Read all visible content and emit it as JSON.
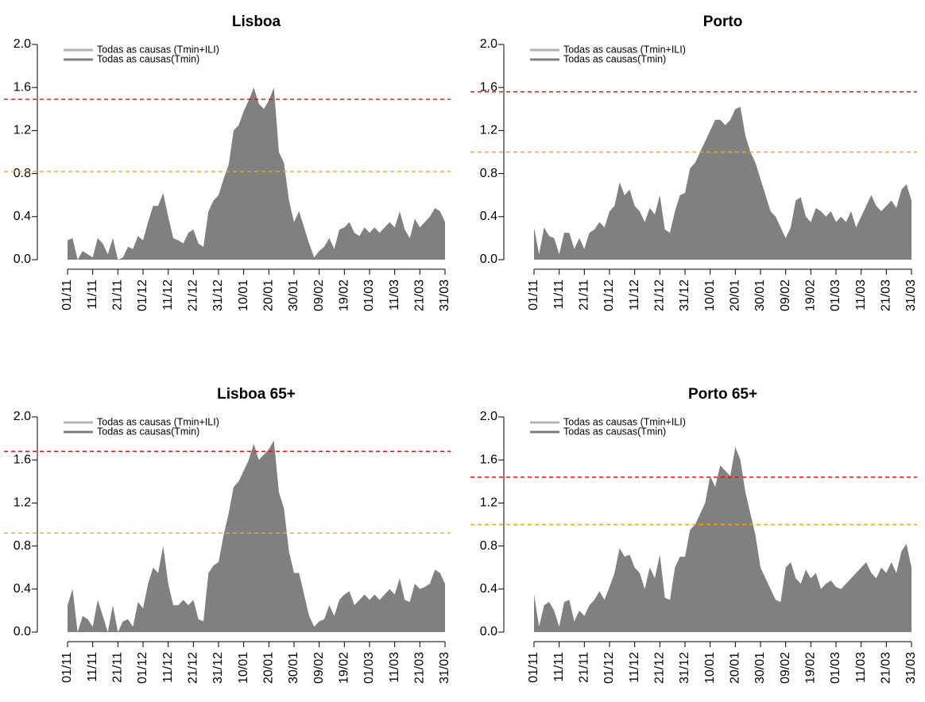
{
  "chart_data": [
    {
      "type": "area",
      "title": "Lisboa",
      "color": "#808080",
      "categories": [
        "01/11",
        null,
        null,
        null,
        null,
        "11/11",
        null,
        null,
        null,
        null,
        "21/11",
        null,
        null,
        null,
        null,
        "01/12",
        null,
        null,
        null,
        null,
        "11/12",
        null,
        null,
        null,
        null,
        "21/12",
        null,
        null,
        null,
        null,
        "31/12",
        null,
        null,
        null,
        null,
        "10/01",
        null,
        null,
        null,
        null,
        "20/01",
        null,
        null,
        null,
        null,
        "30/01",
        null,
        null,
        null,
        null,
        "09/02",
        null,
        null,
        null,
        null,
        "19/02",
        null,
        null,
        null,
        null,
        "01/03",
        null,
        null,
        null,
        null,
        "11/03",
        null,
        null,
        null,
        null,
        "21/03",
        null,
        null,
        null,
        null,
        "31/03"
      ],
      "values": [
        0.18,
        0.2,
        0,
        0.08,
        0.05,
        0.02,
        0.2,
        0.15,
        0.05,
        0.2,
        0,
        0.02,
        0.12,
        0.1,
        0.22,
        0.18,
        0.35,
        0.5,
        0.5,
        0.62,
        0.4,
        0.2,
        0.18,
        0.15,
        0.25,
        0.28,
        0.15,
        0.12,
        0.45,
        0.55,
        0.6,
        0.75,
        0.88,
        1.2,
        1.25,
        1.38,
        1.48,
        1.6,
        1.45,
        1.4,
        1.48,
        1.6,
        1.0,
        0.9,
        0.55,
        0.35,
        0.45,
        0.3,
        0.15,
        0.02,
        0.08,
        0.12,
        0.2,
        0.1,
        0.28,
        0.3,
        0.35,
        0.25,
        0.22,
        0.3,
        0.25,
        0.3,
        0.25,
        0.3,
        0.35,
        0.3,
        0.45,
        0.28,
        0.2,
        0.38,
        0.3,
        0.35,
        0.4,
        0.48,
        0.45,
        0.35
      ],
      "ylim": [
        0,
        2
      ],
      "yticks": [
        {
          "value": 0,
          "label": "0.0"
        },
        0.4,
        0.8,
        1.2,
        1.6,
        {
          "value": 2,
          "label": "2.0"
        }
      ],
      "hlines": [
        {
          "value": 1.49,
          "color": "#ff0000"
        },
        {
          "value": 0.82,
          "color": "#ffa500"
        }
      ],
      "legend": [
        {
          "label": "Todas as causas (Tmin+ILI)",
          "color": "#b3b3b3"
        },
        {
          "label": "Todas as causas(Tmin)",
          "color": "#808080"
        }
      ]
    },
    {
      "type": "area",
      "title": "Porto",
      "color": "#808080",
      "categories": [
        "01/11",
        null,
        null,
        null,
        null,
        "11/11",
        null,
        null,
        null,
        null,
        "21/11",
        null,
        null,
        null,
        null,
        "01/12",
        null,
        null,
        null,
        null,
        "11/12",
        null,
        null,
        null,
        null,
        "21/12",
        null,
        null,
        null,
        null,
        "31/12",
        null,
        null,
        null,
        null,
        "10/01",
        null,
        null,
        null,
        null,
        "20/01",
        null,
        null,
        null,
        null,
        "30/01",
        null,
        null,
        null,
        null,
        "09/02",
        null,
        null,
        null,
        null,
        "19/02",
        null,
        null,
        null,
        null,
        "01/03",
        null,
        null,
        null,
        null,
        "11/03",
        null,
        null,
        null,
        null,
        "21/03",
        null,
        null,
        null,
        null,
        "31/03"
      ],
      "values": [
        0.3,
        0.05,
        0.3,
        0.22,
        0.2,
        0.05,
        0.25,
        0.25,
        0.1,
        0.2,
        0.1,
        0.25,
        0.28,
        0.35,
        0.3,
        0.45,
        0.5,
        0.72,
        0.6,
        0.65,
        0.5,
        0.45,
        0.35,
        0.48,
        0.42,
        0.6,
        0.28,
        0.25,
        0.45,
        0.6,
        0.62,
        0.85,
        0.9,
        1.0,
        1.1,
        1.2,
        1.3,
        1.3,
        1.25,
        1.3,
        1.4,
        1.42,
        1.15,
        1.0,
        0.9,
        0.75,
        0.6,
        0.45,
        0.4,
        0.3,
        0.2,
        0.3,
        0.55,
        0.58,
        0.4,
        0.35,
        0.48,
        0.45,
        0.4,
        0.45,
        0.35,
        0.4,
        0.35,
        0.45,
        0.3,
        0.4,
        0.5,
        0.6,
        0.5,
        0.45,
        0.5,
        0.55,
        0.48,
        0.65,
        0.7,
        0.55
      ],
      "ylim": [
        0,
        2
      ],
      "yticks": [
        {
          "value": 0,
          "label": "0.0"
        },
        0.4,
        0.8,
        1.2,
        1.6,
        {
          "value": 2,
          "label": "2.0"
        }
      ],
      "hlines": [
        {
          "value": 1.56,
          "color": "#ff0000"
        },
        {
          "value": 1.0,
          "color": "#ffa500"
        }
      ],
      "legend": [
        {
          "label": "Todas as causas (Tmin+ILI)",
          "color": "#b3b3b3"
        },
        {
          "label": "Todas as causas(Tmin)",
          "color": "#808080"
        }
      ]
    },
    {
      "type": "area",
      "title": "Lisboa 65+",
      "color": "#808080",
      "categories": [
        "01/11",
        null,
        null,
        null,
        null,
        "11/11",
        null,
        null,
        null,
        null,
        "21/11",
        null,
        null,
        null,
        null,
        "01/12",
        null,
        null,
        null,
        null,
        "11/12",
        null,
        null,
        null,
        null,
        "21/12",
        null,
        null,
        null,
        null,
        "31/12",
        null,
        null,
        null,
        null,
        "10/01",
        null,
        null,
        null,
        null,
        "20/01",
        null,
        null,
        null,
        null,
        "30/01",
        null,
        null,
        null,
        null,
        "09/02",
        null,
        null,
        null,
        null,
        "19/02",
        null,
        null,
        null,
        null,
        "01/03",
        null,
        null,
        null,
        null,
        "11/03",
        null,
        null,
        null,
        null,
        "21/03",
        null,
        null,
        null,
        null,
        "31/03"
      ],
      "values": [
        0.25,
        0.4,
        0,
        0.15,
        0.12,
        0.05,
        0.3,
        0.15,
        0,
        0.25,
        0,
        0.1,
        0.12,
        0.05,
        0.28,
        0.22,
        0.45,
        0.6,
        0.55,
        0.8,
        0.45,
        0.25,
        0.25,
        0.3,
        0.25,
        0.3,
        0.12,
        0.1,
        0.55,
        0.62,
        0.65,
        0.9,
        1.1,
        1.35,
        1.4,
        1.5,
        1.6,
        1.75,
        1.6,
        1.65,
        1.7,
        1.78,
        1.3,
        1.15,
        0.75,
        0.55,
        0.55,
        0.35,
        0.15,
        0.05,
        0.1,
        0.12,
        0.25,
        0.15,
        0.3,
        0.35,
        0.38,
        0.25,
        0.3,
        0.35,
        0.3,
        0.35,
        0.3,
        0.35,
        0.4,
        0.35,
        0.5,
        0.3,
        0.28,
        0.45,
        0.4,
        0.42,
        0.45,
        0.58,
        0.55,
        0.45
      ],
      "ylim": [
        0,
        2
      ],
      "yticks": [
        {
          "value": 0,
          "label": "0.0"
        },
        0.4,
        0.8,
        1.2,
        1.6,
        {
          "value": 2,
          "label": "2.0"
        }
      ],
      "hlines": [
        {
          "value": 1.68,
          "color": "#ff0000"
        },
        {
          "value": 0.92,
          "color": "#ffa500"
        }
      ],
      "legend": [
        {
          "label": "Todas as causas (Tmin+ILI)",
          "color": "#b3b3b3"
        },
        {
          "label": "Todas as causas(Tmin)",
          "color": "#808080"
        }
      ]
    },
    {
      "type": "area",
      "title": "Porto 65+",
      "color": "#808080",
      "categories": [
        "01/11",
        null,
        null,
        null,
        null,
        "11/11",
        null,
        null,
        null,
        null,
        "21/11",
        null,
        null,
        null,
        null,
        "01/12",
        null,
        null,
        null,
        null,
        "11/12",
        null,
        null,
        null,
        null,
        "21/12",
        null,
        null,
        null,
        null,
        "31/12",
        null,
        null,
        null,
        null,
        "10/01",
        null,
        null,
        null,
        null,
        "20/01",
        null,
        null,
        null,
        null,
        "30/01",
        null,
        null,
        null,
        null,
        "09/02",
        null,
        null,
        null,
        null,
        "19/02",
        null,
        null,
        null,
        null,
        "01/03",
        null,
        null,
        null,
        null,
        "11/03",
        null,
        null,
        null,
        null,
        "21/03",
        null,
        null,
        null,
        null,
        "31/03"
      ],
      "values": [
        0.35,
        0.05,
        0.25,
        0.28,
        0.2,
        0.05,
        0.28,
        0.3,
        0.1,
        0.2,
        0.15,
        0.25,
        0.3,
        0.38,
        0.3,
        0.42,
        0.55,
        0.78,
        0.7,
        0.72,
        0.6,
        0.55,
        0.4,
        0.6,
        0.5,
        0.72,
        0.32,
        0.3,
        0.6,
        0.7,
        0.7,
        0.95,
        1.0,
        1.1,
        1.2,
        1.45,
        1.35,
        1.55,
        1.5,
        1.45,
        1.72,
        1.6,
        1.3,
        1.1,
        0.9,
        0.6,
        0.5,
        0.4,
        0.3,
        0.28,
        0.6,
        0.65,
        0.5,
        0.45,
        0.58,
        0.5,
        0.55,
        0.4,
        0.45,
        0.48,
        0.42,
        0.4,
        0.45,
        0.5,
        0.55,
        0.6,
        0.65,
        0.55,
        0.5,
        0.6,
        0.55,
        0.65,
        0.55,
        0.75,
        0.82,
        0.6
      ],
      "ylim": [
        0,
        2
      ],
      "yticks": [
        {
          "value": 0,
          "label": "0.0"
        },
        0.4,
        0.8,
        1.2,
        1.6,
        {
          "value": 2,
          "label": "2.0"
        }
      ],
      "hlines": [
        {
          "value": 1.44,
          "color": "#ff0000"
        },
        {
          "value": 1.0,
          "color": "#ffa500"
        }
      ],
      "legend": [
        {
          "label": "Todas as causas (Tmin+ILI)",
          "color": "#b3b3b3"
        },
        {
          "label": "Todas as causas(Tmin)",
          "color": "#808080"
        }
      ]
    }
  ]
}
